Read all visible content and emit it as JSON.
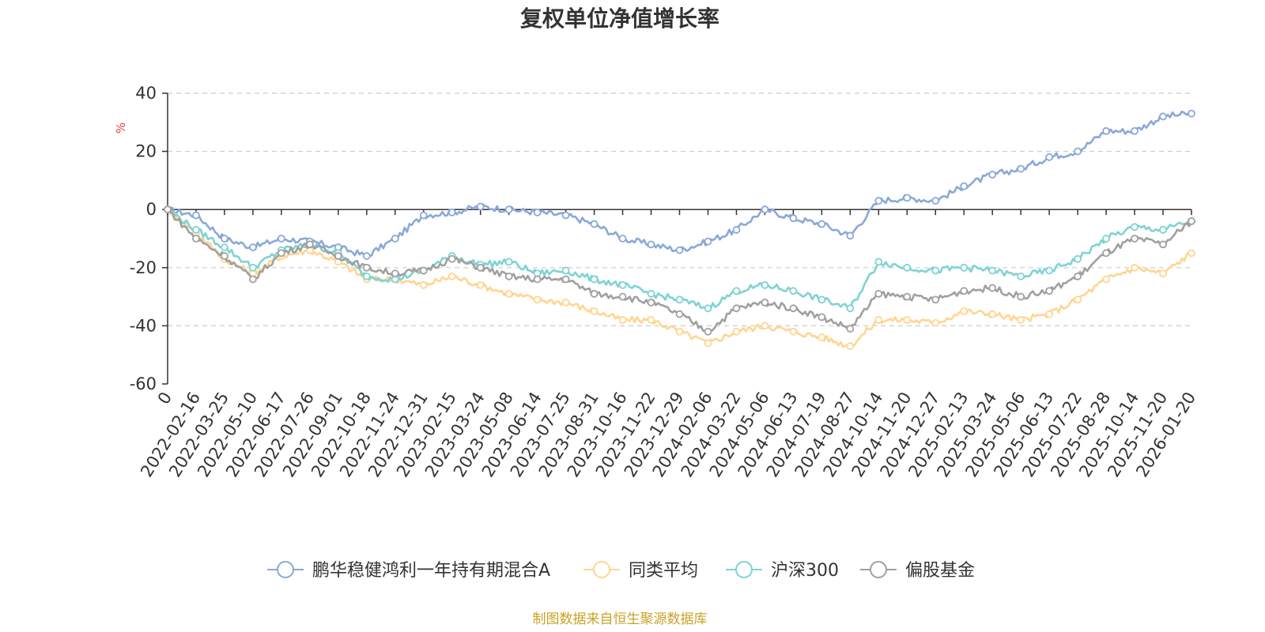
{
  "chart_data": {
    "type": "line",
    "title": "复权单位净值增长率",
    "ylabel": "%",
    "ylim": [
      -60,
      40
    ],
    "yticks": [
      40,
      20,
      0,
      -20,
      -40,
      -60
    ],
    "grid": true,
    "legend_position": "bottom",
    "categories": [
      "0",
      "2022-02-16",
      "2022-03-25",
      "2022-05-10",
      "2022-06-17",
      "2022-07-26",
      "2022-09-01",
      "2022-10-18",
      "2022-11-24",
      "2022-12-31",
      "2023-02-15",
      "2023-03-24",
      "2023-05-08",
      "2023-06-14",
      "2023-07-25",
      "2023-08-31",
      "2023-10-16",
      "2023-11-22",
      "2023-12-29",
      "2024-02-06",
      "2024-03-22",
      "2024-05-06",
      "2024-06-13",
      "2024-07-19",
      "2024-08-27",
      "2024-10-14",
      "2024-11-20",
      "2024-12-27",
      "2025-02-13",
      "2025-03-24",
      "2025-05-06",
      "2025-06-13",
      "2025-07-22",
      "2025-08-28",
      "2025-10-14",
      "2025-11-20",
      "2026-01-20"
    ],
    "series": [
      {
        "name": "鹏华稳健鸿利一年持有期混合A",
        "color": "#8aa8d8",
        "values": [
          0,
          -2,
          -10,
          -13,
          -10,
          -11,
          -13,
          -16,
          -10,
          -2,
          -1,
          1,
          0,
          -1,
          -2,
          -5,
          -10,
          -12,
          -14,
          -11,
          -7,
          0,
          -3,
          -5,
          -9,
          3,
          4,
          3,
          8,
          12,
          14,
          18,
          20,
          27,
          27,
          32,
          33
        ]
      },
      {
        "name": "同类平均",
        "color": "#ffd591",
        "values": [
          0,
          -8,
          -17,
          -22,
          -16,
          -14,
          -18,
          -24,
          -24,
          -26,
          -23,
          -26,
          -29,
          -31,
          -32,
          -35,
          -38,
          -38,
          -42,
          -46,
          -42,
          -40,
          -42,
          -44,
          -47,
          -38,
          -38,
          -39,
          -35,
          -36,
          -38,
          -36,
          -31,
          -24,
          -20,
          -22,
          -15
        ]
      },
      {
        "name": "沪深300",
        "color": "#7fd3d3",
        "values": [
          0,
          -7,
          -13,
          -20,
          -14,
          -12,
          -15,
          -23,
          -24,
          -21,
          -16,
          -19,
          -18,
          -22,
          -21,
          -24,
          -26,
          -29,
          -31,
          -34,
          -28,
          -26,
          -28,
          -31,
          -34,
          -18,
          -20,
          -21,
          -20,
          -21,
          -23,
          -21,
          -17,
          -10,
          -6,
          -7,
          -4
        ]
      },
      {
        "name": "偏股基金",
        "color": "#a0a0a0",
        "values": [
          0,
          -10,
          -16,
          -24,
          -15,
          -12,
          -16,
          -20,
          -22,
          -21,
          -17,
          -20,
          -23,
          -24,
          -24,
          -29,
          -30,
          -32,
          -36,
          -42,
          -34,
          -32,
          -34,
          -37,
          -41,
          -29,
          -30,
          -31,
          -28,
          -27,
          -30,
          -28,
          -23,
          -15,
          -10,
          -12,
          -4
        ]
      }
    ]
  },
  "footer": {
    "source_text": "制图数据来自恒生聚源数据库",
    "source_color": "#c9a227"
  },
  "axis_unit_color": "#e23b3b"
}
